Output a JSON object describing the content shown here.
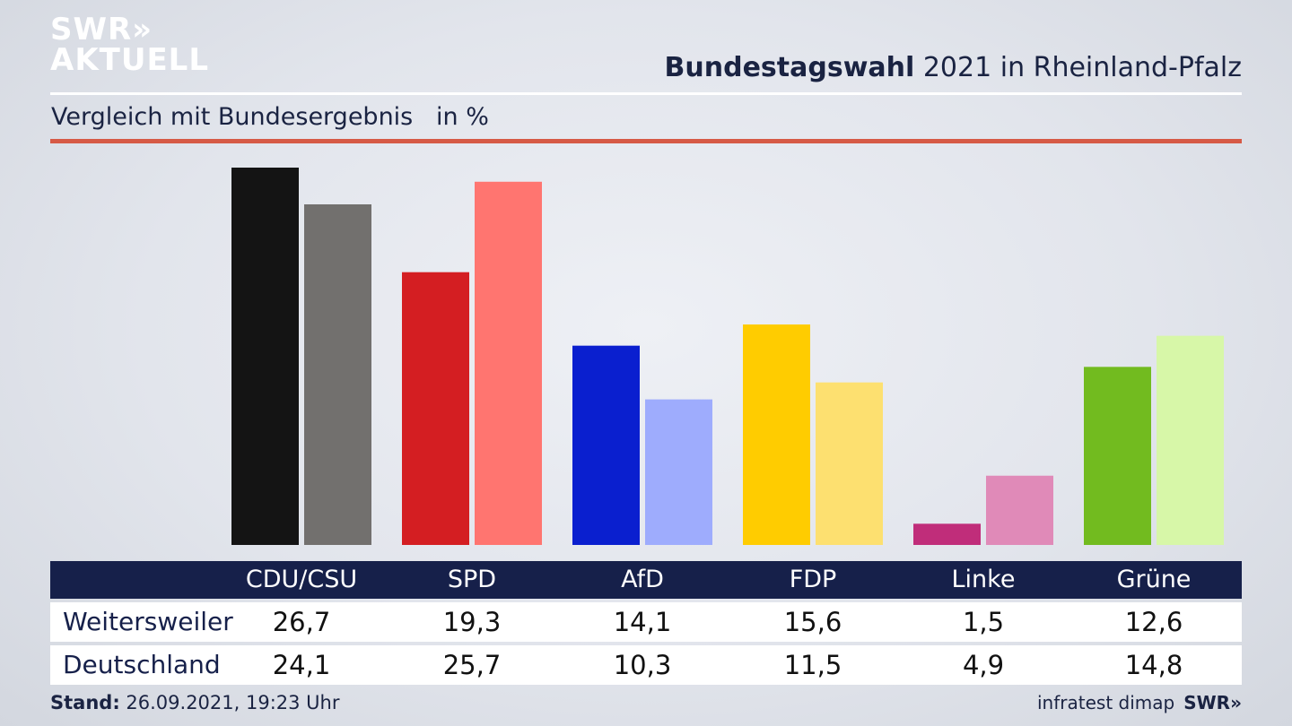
{
  "logo": {
    "line1": "SWR»",
    "line2": "AKTUELL"
  },
  "headline": {
    "bold": "Bundestagswahl",
    "rest": " 2021 in Rheinland-Pfalz"
  },
  "subtitle": "Vergleich mit Bundesergebnis   in %",
  "chart_data": {
    "type": "bar",
    "title": "Bundestagswahl 2021 in Rheinland-Pfalz",
    "subtitle": "Vergleich mit Bundesergebnis   in %",
    "categories": [
      "CDU/CSU",
      "SPD",
      "AfD",
      "FDP",
      "Linke",
      "Grüne"
    ],
    "series": [
      {
        "name": "Weitersweiler",
        "values": [
          26.7,
          19.3,
          14.1,
          15.6,
          1.5,
          12.6
        ],
        "labels": [
          "26,7",
          "19,3",
          "14,1",
          "15,6",
          "1,5",
          "12,6"
        ],
        "colors": [
          "#141414",
          "#d41e22",
          "#0a1fcf",
          "#ffcc00",
          "#c02d7a",
          "#72bb1f"
        ]
      },
      {
        "name": "Deutschland",
        "values": [
          24.1,
          25.7,
          10.3,
          11.5,
          4.9,
          14.8
        ],
        "labels": [
          "24,1",
          "25,7",
          "10,3",
          "11,5",
          "4,9",
          "14,8"
        ],
        "colors": [
          "#72706e",
          "#ff7570",
          "#9eacfd",
          "#fde070",
          "#e08ab8",
          "#d7f7a8"
        ]
      }
    ],
    "ylim": [
      0,
      26.7
    ],
    "grid": false
  },
  "footer": {
    "stand_label": "Stand:",
    "stand_value": " 26.09.2021, 19:23 Uhr",
    "source": "infratest dimap",
    "brand": "SWR»"
  }
}
